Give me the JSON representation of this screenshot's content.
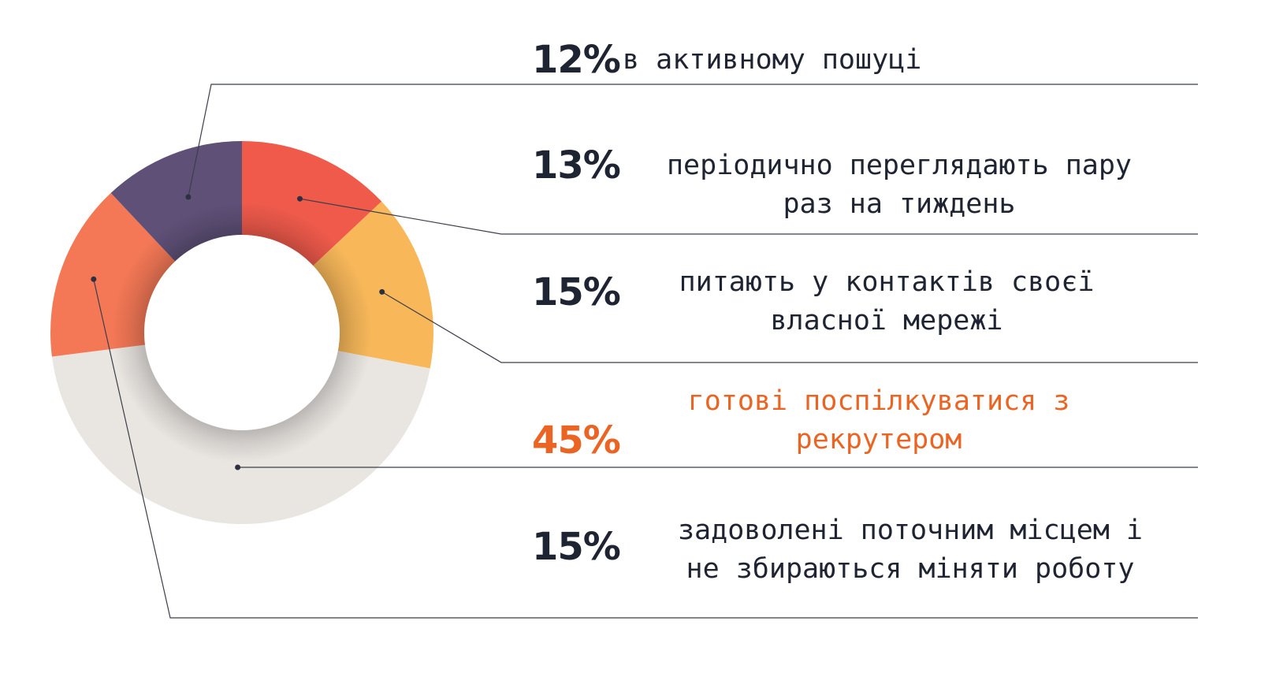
{
  "chart_data": {
    "type": "pie",
    "donut": true,
    "unit": "%",
    "categories": [
      "в активному пошуці",
      "періодично переглядають пару раз на тиждень",
      "питають у контактів своєї власної мережі",
      "готові поспілкуватися з рекрутером",
      "задоволені поточним місцем і не збираються міняти роботу"
    ],
    "values": [
      12,
      13,
      15,
      45,
      15
    ],
    "labels": [
      {
        "value_text": "12%",
        "lines": [
          "в активному пошуці"
        ]
      },
      {
        "value_text": "13%",
        "lines": [
          "періодично переглядають пару",
          "раз на тиждень"
        ]
      },
      {
        "value_text": "15%",
        "lines": [
          "питають у контактів своєї",
          "власної мережі"
        ]
      },
      {
        "value_text": "45%",
        "lines": [
          "готові поспілкуватися з",
          "рекрутером"
        ]
      },
      {
        "value_text": "15%",
        "lines": [
          "задоволені поточним місцем і",
          "не збираються міняти роботу"
        ]
      }
    ],
    "colors": [
      "#5e5077",
      "#ef5a4b",
      "#f8b85a",
      "#e9e5e1",
      "#f47856"
    ],
    "text_colors": {
      "default": "#1f2433",
      "highlight": "#ea6424"
    },
    "highlight_index": 3
  }
}
